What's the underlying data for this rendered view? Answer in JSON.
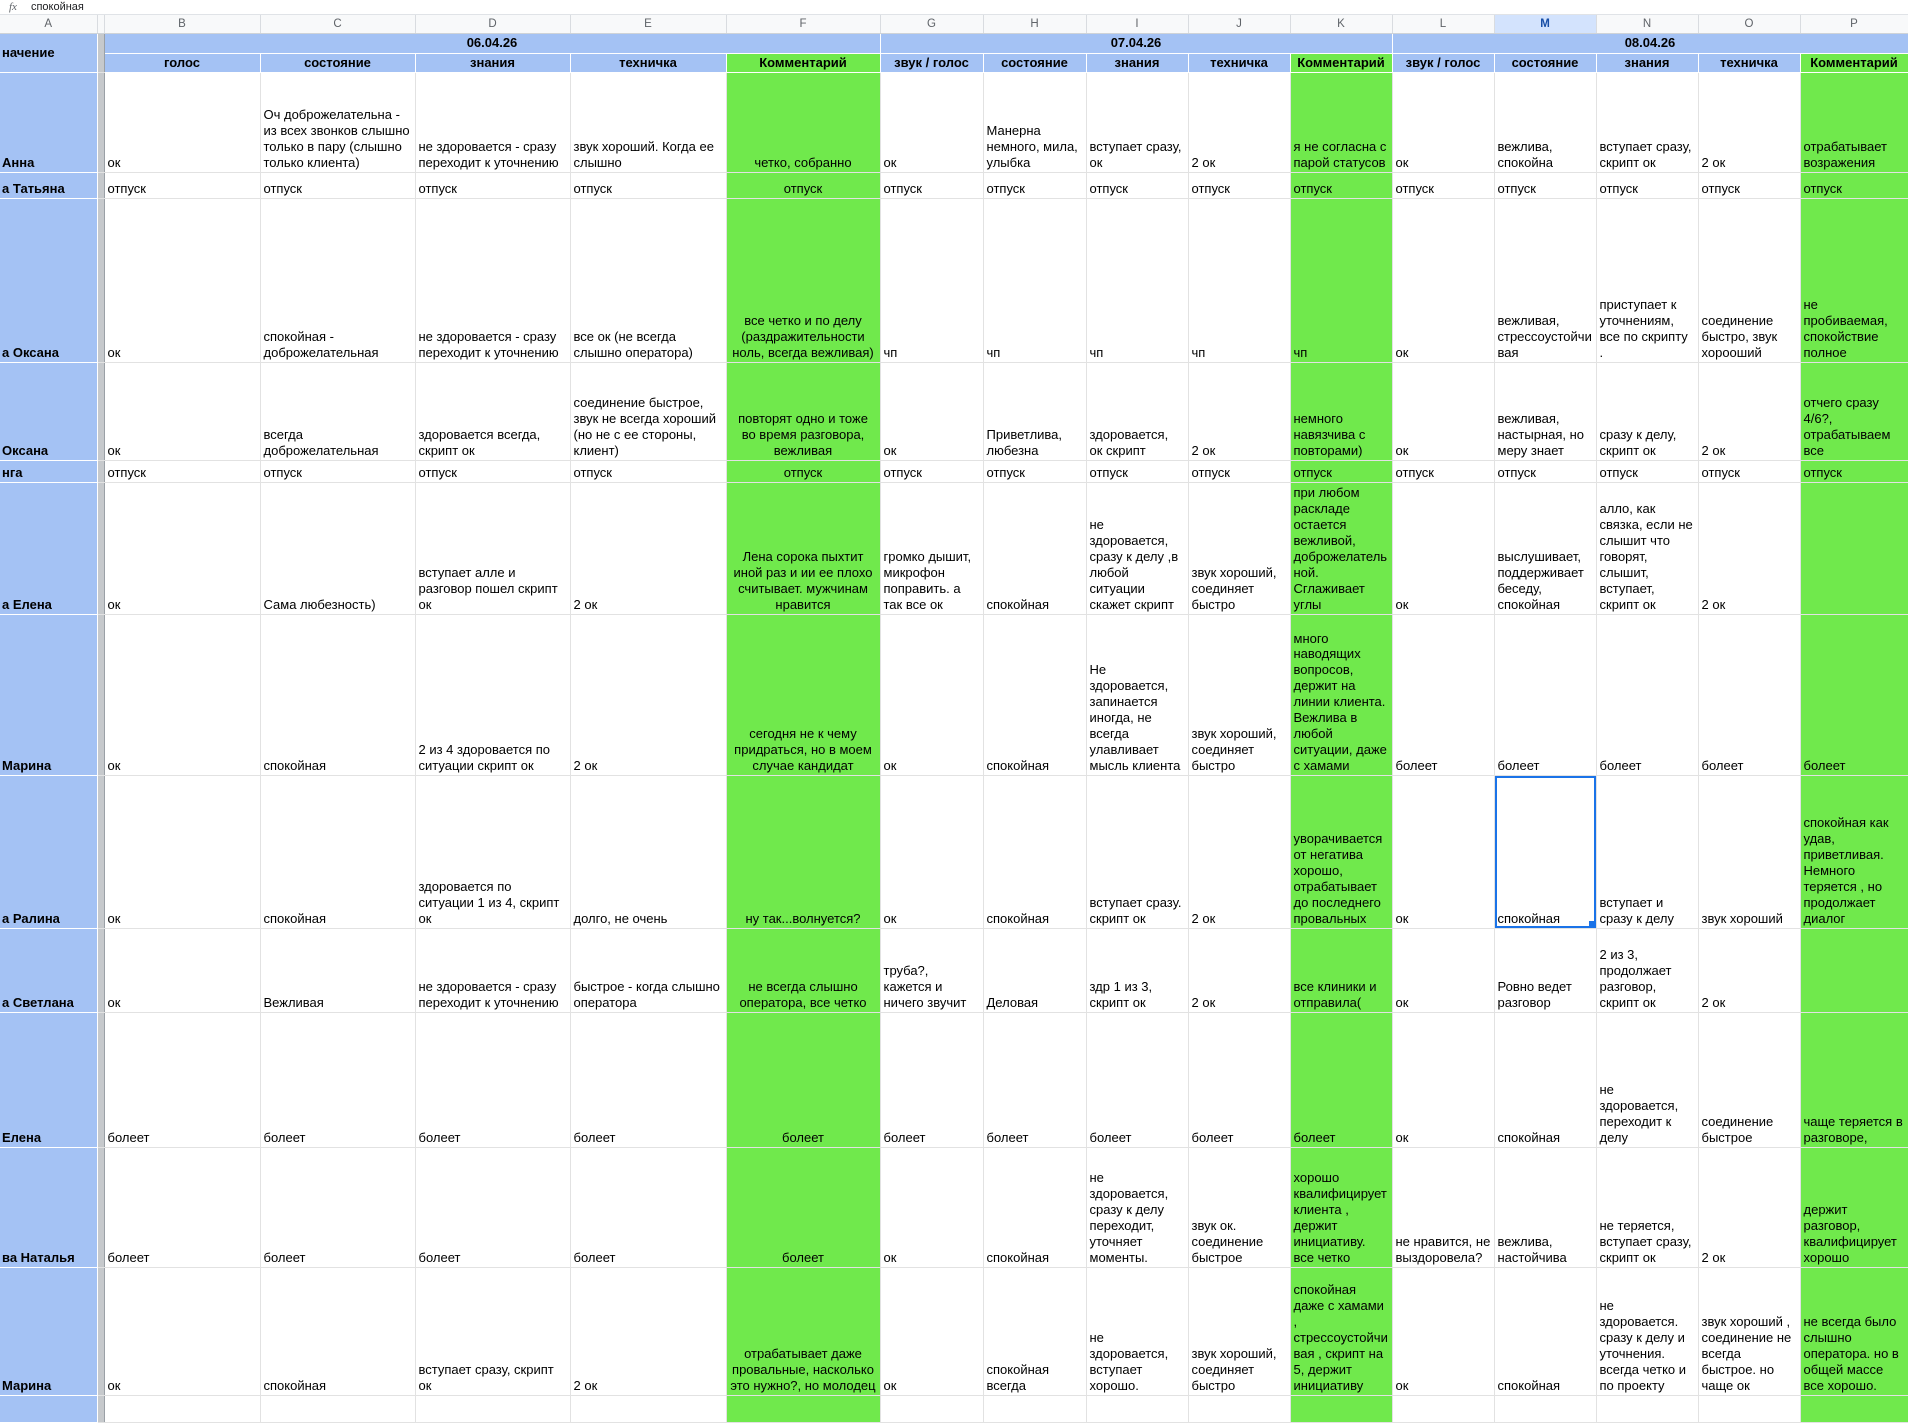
{
  "formula_bar": {
    "fx": "fx",
    "value": "спокойная"
  },
  "column_letters": [
    "A",
    "B",
    "C",
    "D",
    "E",
    "F",
    "G",
    "H",
    "I",
    "J",
    "K",
    "L",
    "M",
    "N",
    "O",
    "P"
  ],
  "selected_column_letter": "M",
  "colors": {
    "header_blue": "#a4c2f4",
    "comment_green": "#70e94c",
    "grid_line": "#e2e2e2",
    "selection_blue": "#1a73e8",
    "selected_letter_bg": "#d3e3fd",
    "selected_letter_text": "#174ea6",
    "letters_bg": "#f8f9fa",
    "letters_text": "#5f6368",
    "divider_gray": "#c6c9cc"
  },
  "header": {
    "corner_label": "начение",
    "date_groups": [
      {
        "label": "06.04.26"
      },
      {
        "label": "07.04.26"
      },
      {
        "label": "08.04.26"
      }
    ],
    "sub_columns": [
      "голос",
      "состояние",
      "знания",
      "техничка",
      "Комментарий",
      "звук / голос",
      "состояние",
      "знания",
      "техничка",
      "Комментарий",
      "звук / голос",
      "состояние",
      "знания",
      "техничка",
      "Комментарий"
    ]
  },
  "rows": [
    {
      "label": "Анна",
      "cells": [
        "ок",
        "Оч доброжелательна - из всех звонков слышно только в пару (слышно только клиента)",
        "не здоровается - сразу переходит к уточнению",
        "звук хороший. Когда ее слышно",
        "четко, собранно",
        "ок",
        "Манерна немного, мила, улыбка",
        "вступает сразу, ок",
        "2 ок",
        "я не согласна с парой статусов",
        "ок",
        "вежлива, спокойна",
        "вступает сразу, скрипт ок",
        "2 ок",
        "отрабатывает возражения"
      ]
    },
    {
      "label": "а Татьяна",
      "cells": [
        "отпуск",
        "отпуск",
        "отпуск",
        "отпуск",
        "отпуск",
        "отпуск",
        "отпуск",
        "отпуск",
        "отпуск",
        "отпуск",
        "отпуск",
        "отпуск",
        "отпуск",
        "отпуск",
        "отпуск"
      ]
    },
    {
      "label": "а Оксана",
      "cells": [
        "ок",
        "спокойная - доброжелательная",
        "не здоровается - сразу переходит к уточнению",
        "все ок (не всегда слышно оператора)",
        "все четко и по делу (раздражительности ноль, всегда вежливая)",
        "чп",
        "чп",
        "чп",
        "чп",
        "чп",
        "ок",
        "вежливая, стрессоустойчивая",
        "приступает к уточнениям, все по скрипту .",
        "соединение быстро, звук хорооший",
        "не пробиваемая, спокойствие полное"
      ]
    },
    {
      "label": "Оксана",
      "cells": [
        "ок",
        "всегда доброжелательная",
        "здоровается всегда, скрипт ок",
        "соединение быстрое, звук не всегда хороший (но не с ее стороны, клиент)",
        "повторят одно и тоже во время разговора, вежливая",
        "ок",
        "Приветлива, любезна",
        "здоровается, ок скрипт",
        "2 ок",
        "немного навязчива с повторами)",
        "ок",
        "вежливая, настырная, но меру знает",
        "сразу к делу, скрипт ок",
        "2 ок",
        "отчего сразу 4/6?, отрабатываем все"
      ]
    },
    {
      "label": "нга",
      "cells": [
        "отпуск",
        "отпуск",
        "отпуск",
        "отпуск",
        "отпуск",
        "отпуск",
        "отпуск",
        "отпуск",
        "отпуск",
        "отпуск",
        "отпуск",
        "отпуск",
        "отпуск",
        "отпуск",
        "отпуск"
      ]
    },
    {
      "label": "а Елена",
      "cells": [
        "ок",
        "Сама любезность)",
        "вступает алле  и разговор пошел  скрипт ок",
        "2 ок",
        "Лена сорока пыхтит иной раз и ии ее плохо считывает. мужчинам нравится",
        "громко дышит, микрофон поправить. а так все ок",
        "спокойная",
        "не здоровается, сразу к делу ,в любой ситуации скажет скрипт",
        "звук хороший, соединяет быстро",
        "при любом раскладе остается вежливой, доброжелательной. Сглаживает углы",
        "ок",
        "выслушивает, поддерживает беседу, спокойная",
        "алло, как связка, если не слышит что говорят, слышит, вступает, скрипт ок",
        "2 ок",
        ""
      ]
    },
    {
      "label": "Марина",
      "cells": [
        "ок",
        "спокойная",
        "2 из 4 здоровается по ситуации скрипт ок",
        "2 ок",
        "сегодня не к чему придраться, но в моем случае кандидат",
        "ок",
        "спокойная",
        "Не здоровается, запинается иногда, не всегда улавливает мысль клиента",
        "звук хороший, соединяет быстро",
        "много наводящих вопросов, держит на линии клиента. Вежлива в любой ситуации, даже с хамами",
        "болеет",
        "болеет",
        "болеет",
        "болеет",
        "болеет"
      ]
    },
    {
      "label": "а Ралина",
      "cells": [
        "ок",
        "спокойная",
        "здоровается по ситуации 1 из 4, скрипт ок",
        "долго, не очень",
        "ну так...волнуется?",
        "ок",
        "спокойная",
        "вступает сразу. скрипт ок",
        "2 ок",
        "уворачивается от негатива хорошо, отрабатывает до последнего провальных",
        "ок",
        "спокойная",
        "вступает и сразу к делу",
        "звук хороший",
        "спокойная как удав, приветливая. Немного теряется , но продолжает диалог"
      ]
    },
    {
      "label": "а Светлана",
      "cells": [
        "ок",
        "Вежливая",
        "не здоровается - сразу переходит к уточнению",
        "быстрое - когда слышно оператора",
        "не всегда слышно оператора, все четко",
        "труба?, кажется и ничего звучит",
        "Деловая",
        "здр 1 из 3, скрипт ок",
        "2 ок",
        "все клиники и отправила(",
        "ок",
        "Ровно ведет разговор",
        "2 из 3, продолжает разговор, скрипт ок",
        "2 ок",
        ""
      ]
    },
    {
      "label": "Елена",
      "cells": [
        "болеет",
        "болеет",
        "болеет",
        "болеет",
        "болеет",
        "болеет",
        "болеет",
        "болеет",
        "болеет",
        "болеет",
        "ок",
        "спокойная",
        "не здоровается, переходит к делу",
        "соединение быстрое",
        "чаще теряется в разговоре,"
      ]
    },
    {
      "label": "ва Наталья",
      "cells": [
        "болеет",
        "болеет",
        "болеет",
        "болеет",
        "болеет",
        "ок",
        "спокойная",
        "не здоровается, сразу к делу переходит, уточняет моменты.",
        "звук ок. соединение быстрое",
        "хорошо квалифицирует клиента , держит инициативу. все четко",
        "не нравится, не выздоровела?",
        "вежлива, настойчива",
        "не теряется, вступает сразу, скрипт ок",
        "2 ок",
        "держит разговор, квалифицирует хорошо"
      ]
    },
    {
      "label": "Марина",
      "cells": [
        "ок",
        "спокойная",
        "вступает сразу, скрипт ок",
        "2 ок",
        "отрабатывает даже провальные, насколько это нужно?, но молодец",
        "ок",
        "спокойная всегда",
        "не здоровается, вступает хорошо.",
        "звук хороший, соединяет быстро",
        "спокойная даже с хамами , стрессоустойчивая , скрипт на 5, держит инициативу",
        "ок",
        "спокойная",
        "не здоровается. сразу к делу и уточнения. всегда четко и по проекту",
        "звук хороший , соединение не всегда быстрое. но чаще ок",
        "не всегда было слышно оператора. но в общей массе все хорошо."
      ]
    },
    {
      "label": "",
      "cells": [
        "",
        "",
        "",
        "",
        "",
        "",
        "",
        "",
        "",
        "",
        "",
        "",
        "",
        "",
        ""
      ]
    }
  ]
}
